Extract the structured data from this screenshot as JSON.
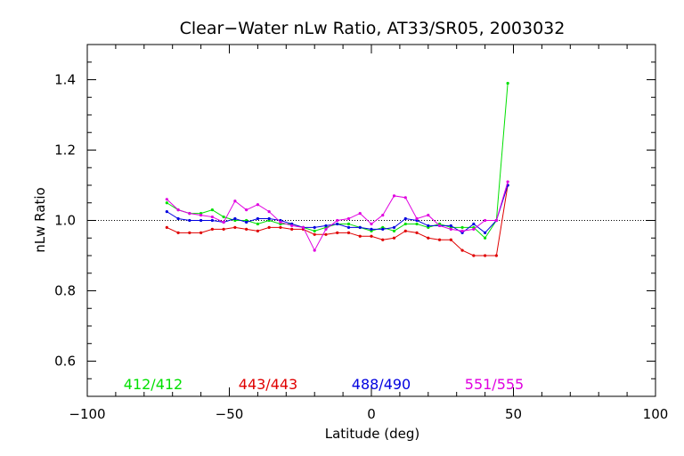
{
  "chart_data": {
    "type": "line",
    "title": "Clear−Water nLw Ratio, AT33/SR05, 2003032",
    "xlabel": "Latitude (deg)",
    "ylabel": "nLw Ratio",
    "xlim": [
      -100,
      100
    ],
    "ylim": [
      0.5,
      1.5
    ],
    "x_ticks": [
      -100,
      -50,
      0,
      50,
      100
    ],
    "x_tick_labels": [
      "−100",
      "−50",
      "0",
      "50",
      "100"
    ],
    "y_ticks": [
      0.6,
      0.8,
      1.0,
      1.2,
      1.4
    ],
    "y_tick_labels": [
      "0.6",
      "0.8",
      "1.0",
      "1.2",
      "1.4"
    ],
    "reference_line": {
      "y": 1.0,
      "style": "dotted"
    },
    "grid": false,
    "legend_placement": "bottom inside plot",
    "x": [
      -72,
      -68,
      -64,
      -60,
      -56,
      -52,
      -48,
      -44,
      -40,
      -36,
      -32,
      -28,
      -24,
      -20,
      -16,
      -12,
      -8,
      -4,
      0,
      4,
      8,
      12,
      16,
      20,
      24,
      28,
      32,
      36,
      40,
      44,
      48
    ],
    "series": [
      {
        "name": "412/412",
        "color": "#00e000",
        "values": [
          1.05,
          1.03,
          1.02,
          1.02,
          1.03,
          1.01,
          1.0,
          1.0,
          0.99,
          1.0,
          0.99,
          0.99,
          0.98,
          0.97,
          0.98,
          0.99,
          0.99,
          0.98,
          0.97,
          0.98,
          0.97,
          0.99,
          0.99,
          0.98,
          0.99,
          0.98,
          0.98,
          0.98,
          0.95,
          1.0,
          1.39
        ]
      },
      {
        "name": "443/443",
        "color": "#e00000",
        "values": [
          0.98,
          0.965,
          0.965,
          0.965,
          0.975,
          0.975,
          0.98,
          0.975,
          0.97,
          0.98,
          0.98,
          0.975,
          0.975,
          0.96,
          0.96,
          0.965,
          0.965,
          0.955,
          0.955,
          0.945,
          0.95,
          0.97,
          0.965,
          0.95,
          0.945,
          0.945,
          0.915,
          0.9,
          0.9,
          0.9,
          1.1
        ]
      },
      {
        "name": "488/490",
        "color": "#0000e0",
        "values": [
          1.025,
          1.005,
          1.0,
          1.0,
          1.0,
          0.995,
          1.005,
          0.995,
          1.005,
          1.005,
          1.0,
          0.99,
          0.98,
          0.98,
          0.985,
          0.99,
          0.98,
          0.98,
          0.975,
          0.975,
          0.98,
          1.005,
          1.0,
          0.985,
          0.985,
          0.985,
          0.965,
          0.99,
          0.965,
          1.0,
          1.1
        ]
      },
      {
        "name": "551/555",
        "color": "#e000e0",
        "values": [
          1.06,
          1.03,
          1.02,
          1.015,
          1.01,
          0.995,
          1.055,
          1.03,
          1.045,
          1.025,
          0.995,
          0.985,
          0.98,
          0.915,
          0.975,
          1.0,
          1.005,
          1.02,
          0.99,
          1.015,
          1.07,
          1.065,
          1.005,
          1.015,
          0.985,
          0.975,
          0.97,
          0.975,
          1.0,
          1.0,
          1.11
        ]
      }
    ]
  }
}
